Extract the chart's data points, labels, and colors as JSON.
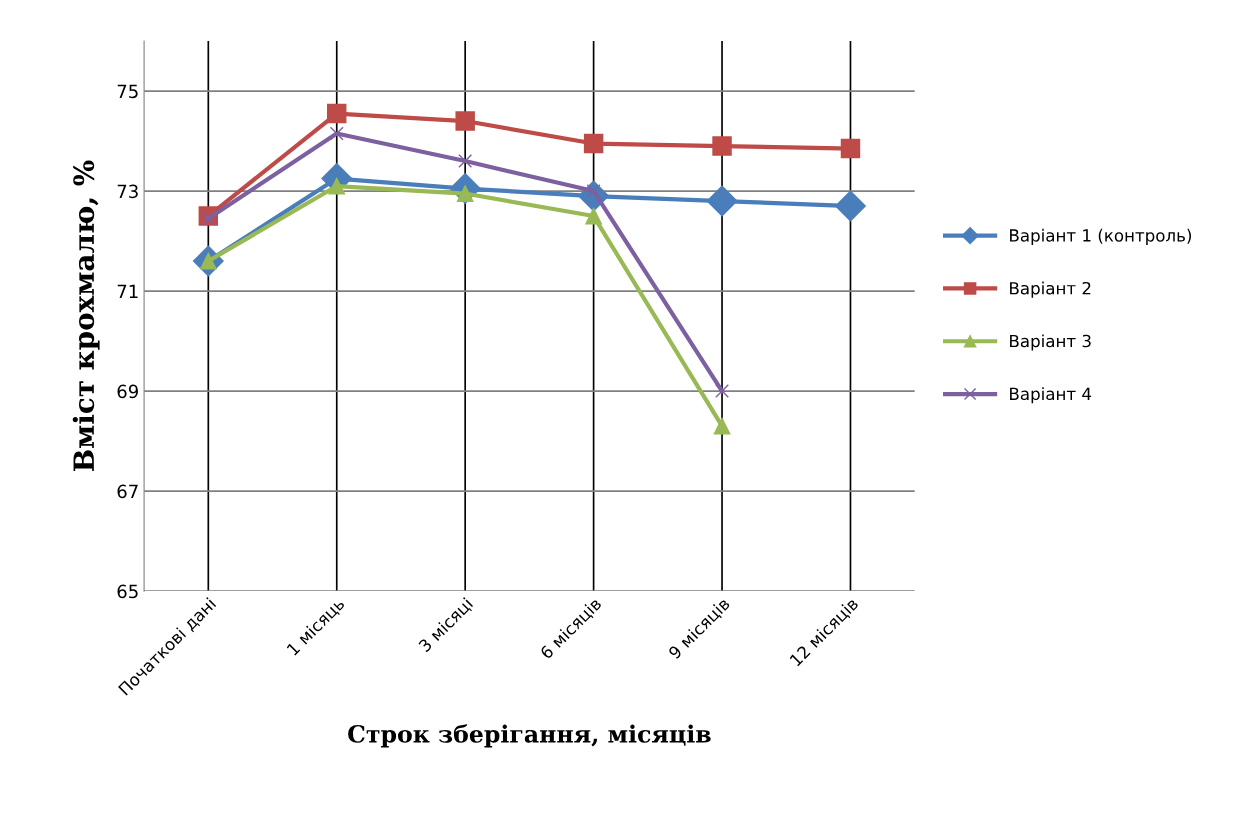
{
  "chart_data": {
    "type": "line",
    "xlabel": "Строк зберігання, місяців",
    "ylabel": "Вміст крохмалю, %",
    "categories": [
      "Початкові дані",
      "1 місяць",
      "3 місяці",
      "6 місяців",
      "9 місяців",
      "12 місяців"
    ],
    "series": [
      {
        "name": "Варіант 1 (контроль)",
        "color": "#4a7ebb",
        "marker": "diamond",
        "values": [
          71.6,
          73.25,
          73.05,
          72.9,
          72.8,
          72.7
        ]
      },
      {
        "name": "Варіант 2",
        "color": "#be4b48",
        "marker": "square",
        "values": [
          72.5,
          74.55,
          74.4,
          73.95,
          73.9,
          73.85
        ]
      },
      {
        "name": "Варіант 3",
        "color": "#98b954",
        "marker": "triangle",
        "values": [
          71.6,
          73.1,
          72.95,
          72.5,
          68.3,
          null
        ]
      },
      {
        "name": "Варіант 4",
        "color": "#7d60a0",
        "marker": "cross",
        "values": [
          72.45,
          74.15,
          73.6,
          73.0,
          69.0,
          null
        ]
      }
    ],
    "ylim": [
      65,
      76
    ],
    "yticks": [
      65,
      67,
      69,
      71,
      73,
      75
    ],
    "grid": true,
    "legend": "right"
  }
}
